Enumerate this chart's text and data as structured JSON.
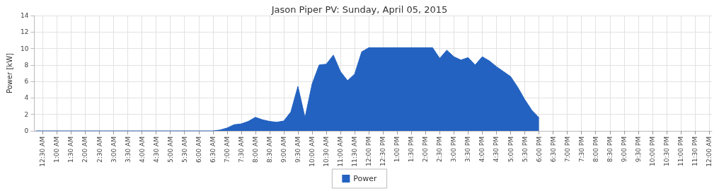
{
  "chart_data": {
    "type": "area",
    "title": "Jason Piper PV: Sunday, April 05, 2015",
    "ylabel": "Power [kW]",
    "series": [
      {
        "name": "Power",
        "color": "#2362c0",
        "x": [
          0.25,
          6.5,
          6.75,
          7.0,
          7.25,
          7.5,
          7.75,
          8.0,
          8.25,
          8.5,
          8.75,
          9.0,
          9.25,
          9.5,
          9.75,
          10.0,
          10.25,
          10.5,
          10.75,
          11.0,
          11.25,
          11.5,
          11.75,
          12.0,
          12.25,
          12.5,
          12.75,
          13.0,
          13.25,
          13.5,
          13.75,
          14.0,
          14.25,
          14.5,
          14.75,
          15.0,
          15.25,
          15.5,
          15.75,
          16.0,
          16.25,
          16.5,
          16.75,
          17.0,
          17.25,
          17.5,
          17.75,
          18.0
        ],
        "values": [
          0,
          0,
          0.1,
          0.35,
          0.75,
          0.85,
          1.15,
          1.65,
          1.35,
          1.15,
          1.05,
          1.2,
          2.3,
          5.4,
          1.6,
          5.7,
          8.0,
          8.1,
          9.2,
          7.2,
          6.1,
          6.9,
          9.6,
          10.1,
          10.1,
          10.1,
          10.1,
          10.1,
          10.1,
          10.1,
          10.1,
          10.1,
          10.1,
          8.8,
          9.8,
          9.0,
          8.6,
          8.9,
          8.0,
          9.0,
          8.5,
          7.8,
          7.2,
          6.6,
          5.3,
          3.8,
          2.5,
          1.6
        ]
      }
    ],
    "xlim": [
      0.2,
      24.1
    ],
    "xticks": [
      {
        "value": 0.5,
        "label": "12:30 AM"
      },
      {
        "value": 1,
        "label": "1:00 AM"
      },
      {
        "value": 1.5,
        "label": "1:30 AM"
      },
      {
        "value": 2,
        "label": "2:00 AM"
      },
      {
        "value": 2.5,
        "label": "2:30 AM"
      },
      {
        "value": 3,
        "label": "3:00 AM"
      },
      {
        "value": 3.5,
        "label": "3:30 AM"
      },
      {
        "value": 4,
        "label": "4:00 AM"
      },
      {
        "value": 4.5,
        "label": "4:30 AM"
      },
      {
        "value": 5,
        "label": "5:00 AM"
      },
      {
        "value": 5.5,
        "label": "5:30 AM"
      },
      {
        "value": 6,
        "label": "6:00 AM"
      },
      {
        "value": 6.5,
        "label": "6:30 AM"
      },
      {
        "value": 7,
        "label": "7:00 AM"
      },
      {
        "value": 7.5,
        "label": "7:30 AM"
      },
      {
        "value": 8,
        "label": "8:00 AM"
      },
      {
        "value": 8.5,
        "label": "8:30 AM"
      },
      {
        "value": 9,
        "label": "9:00 AM"
      },
      {
        "value": 9.5,
        "label": "9:30 AM"
      },
      {
        "value": 10,
        "label": "10:00 AM"
      },
      {
        "value": 10.5,
        "label": "10:30 AM"
      },
      {
        "value": 11,
        "label": "11:00 AM"
      },
      {
        "value": 11.5,
        "label": "11:30 AM"
      },
      {
        "value": 12,
        "label": "12:00 PM"
      },
      {
        "value": 12.5,
        "label": "12:30 PM"
      },
      {
        "value": 13,
        "label": "1:00 PM"
      },
      {
        "value": 13.5,
        "label": "1:30 PM"
      },
      {
        "value": 14,
        "label": "2:00 PM"
      },
      {
        "value": 14.5,
        "label": "2:30 PM"
      },
      {
        "value": 15,
        "label": "3:00 PM"
      },
      {
        "value": 15.5,
        "label": "3:30 PM"
      },
      {
        "value": 16,
        "label": "4:00 PM"
      },
      {
        "value": 16.5,
        "label": "4:30 PM"
      },
      {
        "value": 17,
        "label": "5:00 PM"
      },
      {
        "value": 17.5,
        "label": "5:30 PM"
      },
      {
        "value": 18,
        "label": "6:00 PM"
      },
      {
        "value": 18.5,
        "label": "6:30 PM"
      },
      {
        "value": 19,
        "label": "7:00 PM"
      },
      {
        "value": 19.5,
        "label": "7:30 PM"
      },
      {
        "value": 20,
        "label": "8:00 PM"
      },
      {
        "value": 20.5,
        "label": "8:30 PM"
      },
      {
        "value": 21,
        "label": "9:00 PM"
      },
      {
        "value": 21.5,
        "label": "9:30 PM"
      },
      {
        "value": 22,
        "label": "10:00 PM"
      },
      {
        "value": 22.5,
        "label": "10:30 PM"
      },
      {
        "value": 23,
        "label": "11:00 PM"
      },
      {
        "value": 23.5,
        "label": "11:30 PM"
      },
      {
        "value": 24,
        "label": "12:00 AM"
      }
    ],
    "ylim": [
      0,
      14
    ],
    "yticks": [
      0,
      2,
      4,
      6,
      8,
      10,
      12,
      14
    ],
    "grid": true,
    "legend": "bottom"
  }
}
